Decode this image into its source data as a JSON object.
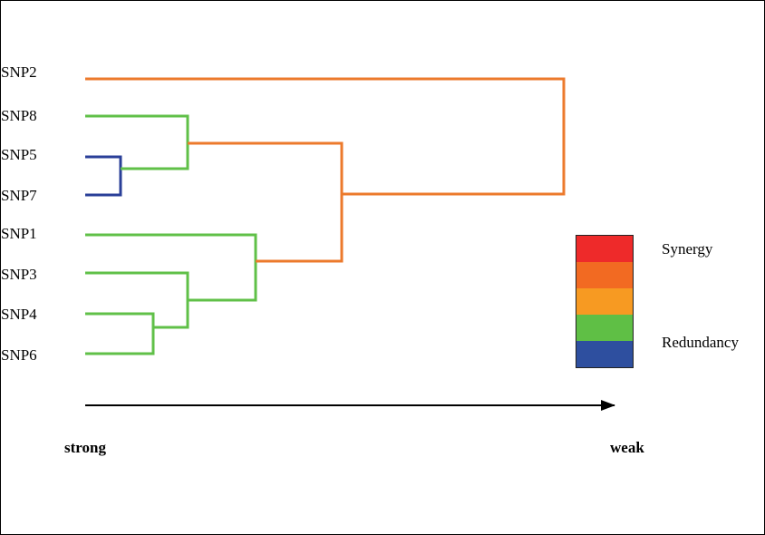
{
  "leaves": [
    "SNP2",
    "SNP8",
    "SNP5",
    "SNP7",
    "SNP1",
    "SNP3",
    "SNP4",
    "SNP6"
  ],
  "legend": {
    "top_label": "Synergy",
    "bottom_label": "Redundancy",
    "colors": [
      "#ee2a2a",
      "#f26a22",
      "#f79a22",
      "#5fbf45",
      "#2e4f9f"
    ]
  },
  "axis": {
    "start_label": "strong",
    "end_label": "weak"
  },
  "colors": {
    "orange": "#ec7a2c",
    "green": "#60c048",
    "blue": "#2a3f98"
  }
}
